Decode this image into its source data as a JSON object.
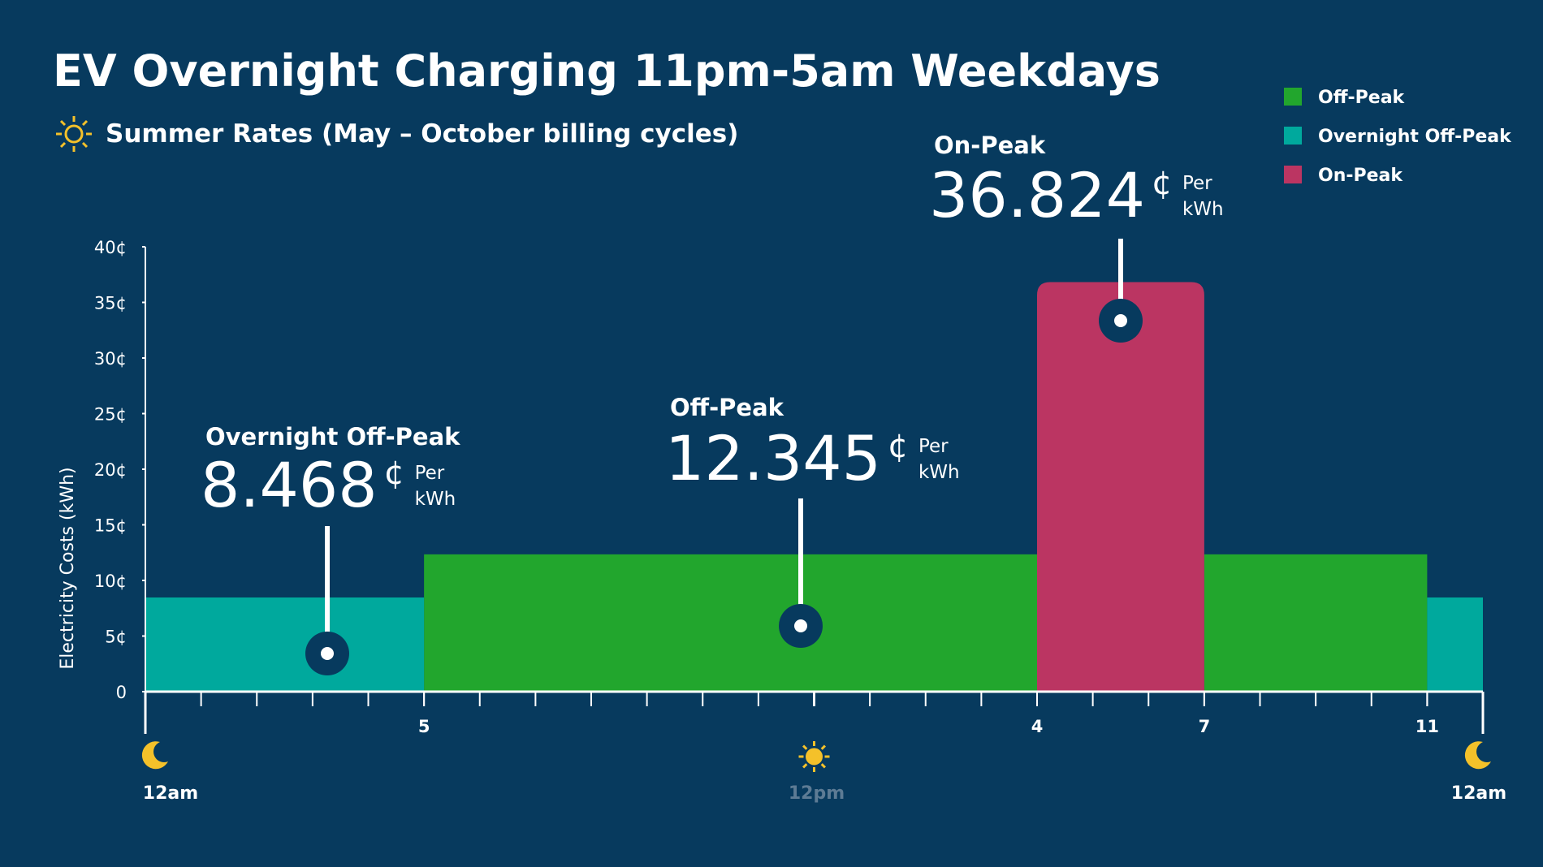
{
  "chart_data": {
    "type": "step-bar",
    "title": "EV Overnight Charging 11pm-5am Weekdays",
    "subtitle": "Summer Rates (May – October billing cycles)",
    "y_label": "Electricity Costs (kWh)",
    "series": [
      {
        "name": "Off-Peak",
        "color": "#22a62d",
        "ranges": [
          [
            5,
            16
          ],
          [
            19,
            23
          ]
        ],
        "values": [
          12.345,
          12.345
        ]
      },
      {
        "name": "Overnight Off-Peak",
        "color": "#00a99d",
        "ranges": [
          [
            0,
            5
          ],
          [
            23,
            24
          ]
        ],
        "values": [
          8.468,
          8.468
        ]
      },
      {
        "name": "On-Peak",
        "color": "#bb3562",
        "ranges": [
          [
            16,
            19
          ]
        ],
        "values": [
          36.824
        ]
      }
    ],
    "callout_unit": "¢",
    "callout_unit_note": [
      "Per",
      "kWh"
    ],
    "xlim": [
      0,
      24
    ],
    "xticks": [
      {
        "value": 0,
        "label": "12am"
      },
      5,
      {
        "value": 12,
        "label": "12pm"
      },
      {
        "value": 16,
        "label": "4"
      },
      {
        "value": 19,
        "label": "7"
      },
      {
        "value": 23,
        "label": "11"
      },
      {
        "value": 24,
        "label": "12am"
      }
    ],
    "xminorticks": [
      1,
      2,
      3,
      4,
      5,
      6,
      7,
      8,
      9,
      10,
      11,
      12,
      13,
      14,
      15,
      16,
      17,
      18,
      19,
      20,
      21,
      22,
      23
    ],
    "ylim": [
      0,
      40
    ],
    "yticks": [
      0,
      {
        "value": 5,
        "label": "5¢"
      },
      {
        "value": 10,
        "label": "10¢"
      },
      {
        "value": 15,
        "label": "15¢"
      },
      {
        "value": 20,
        "label": "20¢"
      },
      {
        "value": 25,
        "label": "25¢"
      },
      {
        "value": 30,
        "label": "30¢"
      },
      {
        "value": 35,
        "label": "35¢"
      },
      {
        "value": 40,
        "label": "40¢"
      }
    ],
    "legend": "top-right"
  }
}
